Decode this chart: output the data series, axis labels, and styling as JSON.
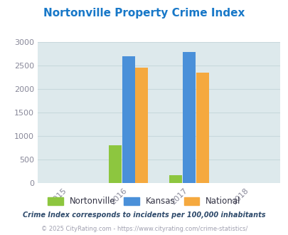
{
  "title": "Nortonville Property Crime Index",
  "title_color": "#1878C8",
  "years_labels": [
    "2015",
    "2016",
    "2017",
    "2018"
  ],
  "groups": {
    "2016": {
      "Nortonville": 810,
      "Kansas": 2700,
      "National": 2465
    },
    "2017": {
      "Nortonville": 170,
      "Kansas": 2800,
      "National": 2355
    }
  },
  "colors": {
    "Nortonville": "#8DC63F",
    "Kansas": "#4A90D9",
    "National": "#F5A93F"
  },
  "ylim": [
    0,
    3000
  ],
  "yticks": [
    0,
    500,
    1000,
    1500,
    2000,
    2500,
    3000
  ],
  "bg_color": "#DDE9EC",
  "fig_bg": "#FFFFFF",
  "bar_width": 0.22,
  "legend_labels": [
    "Nortonville",
    "Kansas",
    "National"
  ],
  "footer1": "Crime Index corresponds to incidents per 100,000 inhabitants",
  "footer2": "© 2025 CityRating.com - https://www.cityrating.com/crime-statistics/",
  "footer1_color": "#2E4A6B",
  "footer2_color": "#A0A0B0",
  "tick_color": "#888899",
  "grid_color": "#C8D8DC"
}
